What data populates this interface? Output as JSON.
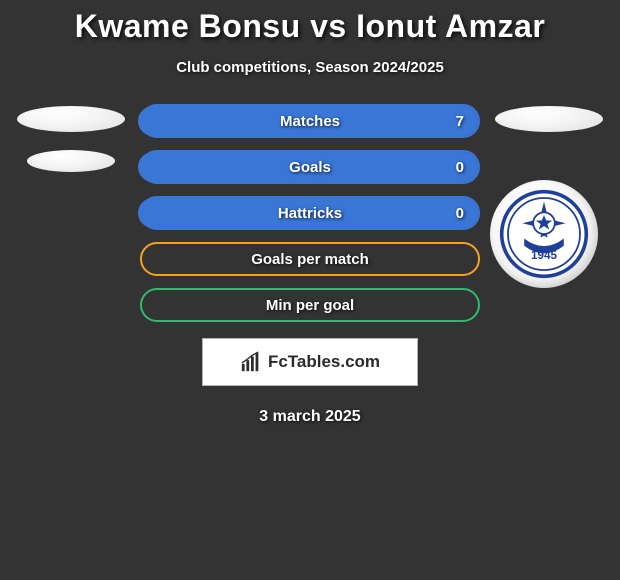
{
  "title": "Kwame Bonsu vs Ionut Amzar",
  "subtitle": "Club competitions, Season 2024/2025",
  "date": "3 march 2025",
  "logo": {
    "text": "FcTables.com"
  },
  "badge": {
    "outer_ring_color": "#1f3f9a",
    "inner_bg": "#ffffff",
    "ball_color": "#1f3f9a",
    "year_text": "1945",
    "year_color": "#1f3f9a"
  },
  "bar_container_width": 340,
  "bars": [
    {
      "label": "Matches",
      "value_right": "7",
      "border_color": "#3a76d6",
      "fill_color": "#3a76d6",
      "fill_left_pct": 0,
      "fill_right_pct": 100
    },
    {
      "label": "Goals",
      "value_right": "0",
      "border_color": "#3a76d6",
      "fill_color": "#3a76d6",
      "fill_left_pct": 0,
      "fill_right_pct": 100
    },
    {
      "label": "Hattricks",
      "value_right": "0",
      "border_color": "#3a76d6",
      "fill_color": "#3a76d6",
      "fill_left_pct": 0,
      "fill_right_pct": 100
    },
    {
      "label": "Goals per match",
      "value_right": "",
      "border_color": "#f5a022",
      "fill_color": "#f5a022",
      "fill_left_pct": 0,
      "fill_right_pct": 0
    },
    {
      "label": "Min per goal",
      "value_right": "",
      "border_color": "#30b96e",
      "fill_color": "#30b96e",
      "fill_left_pct": 0,
      "fill_right_pct": 0
    }
  ]
}
